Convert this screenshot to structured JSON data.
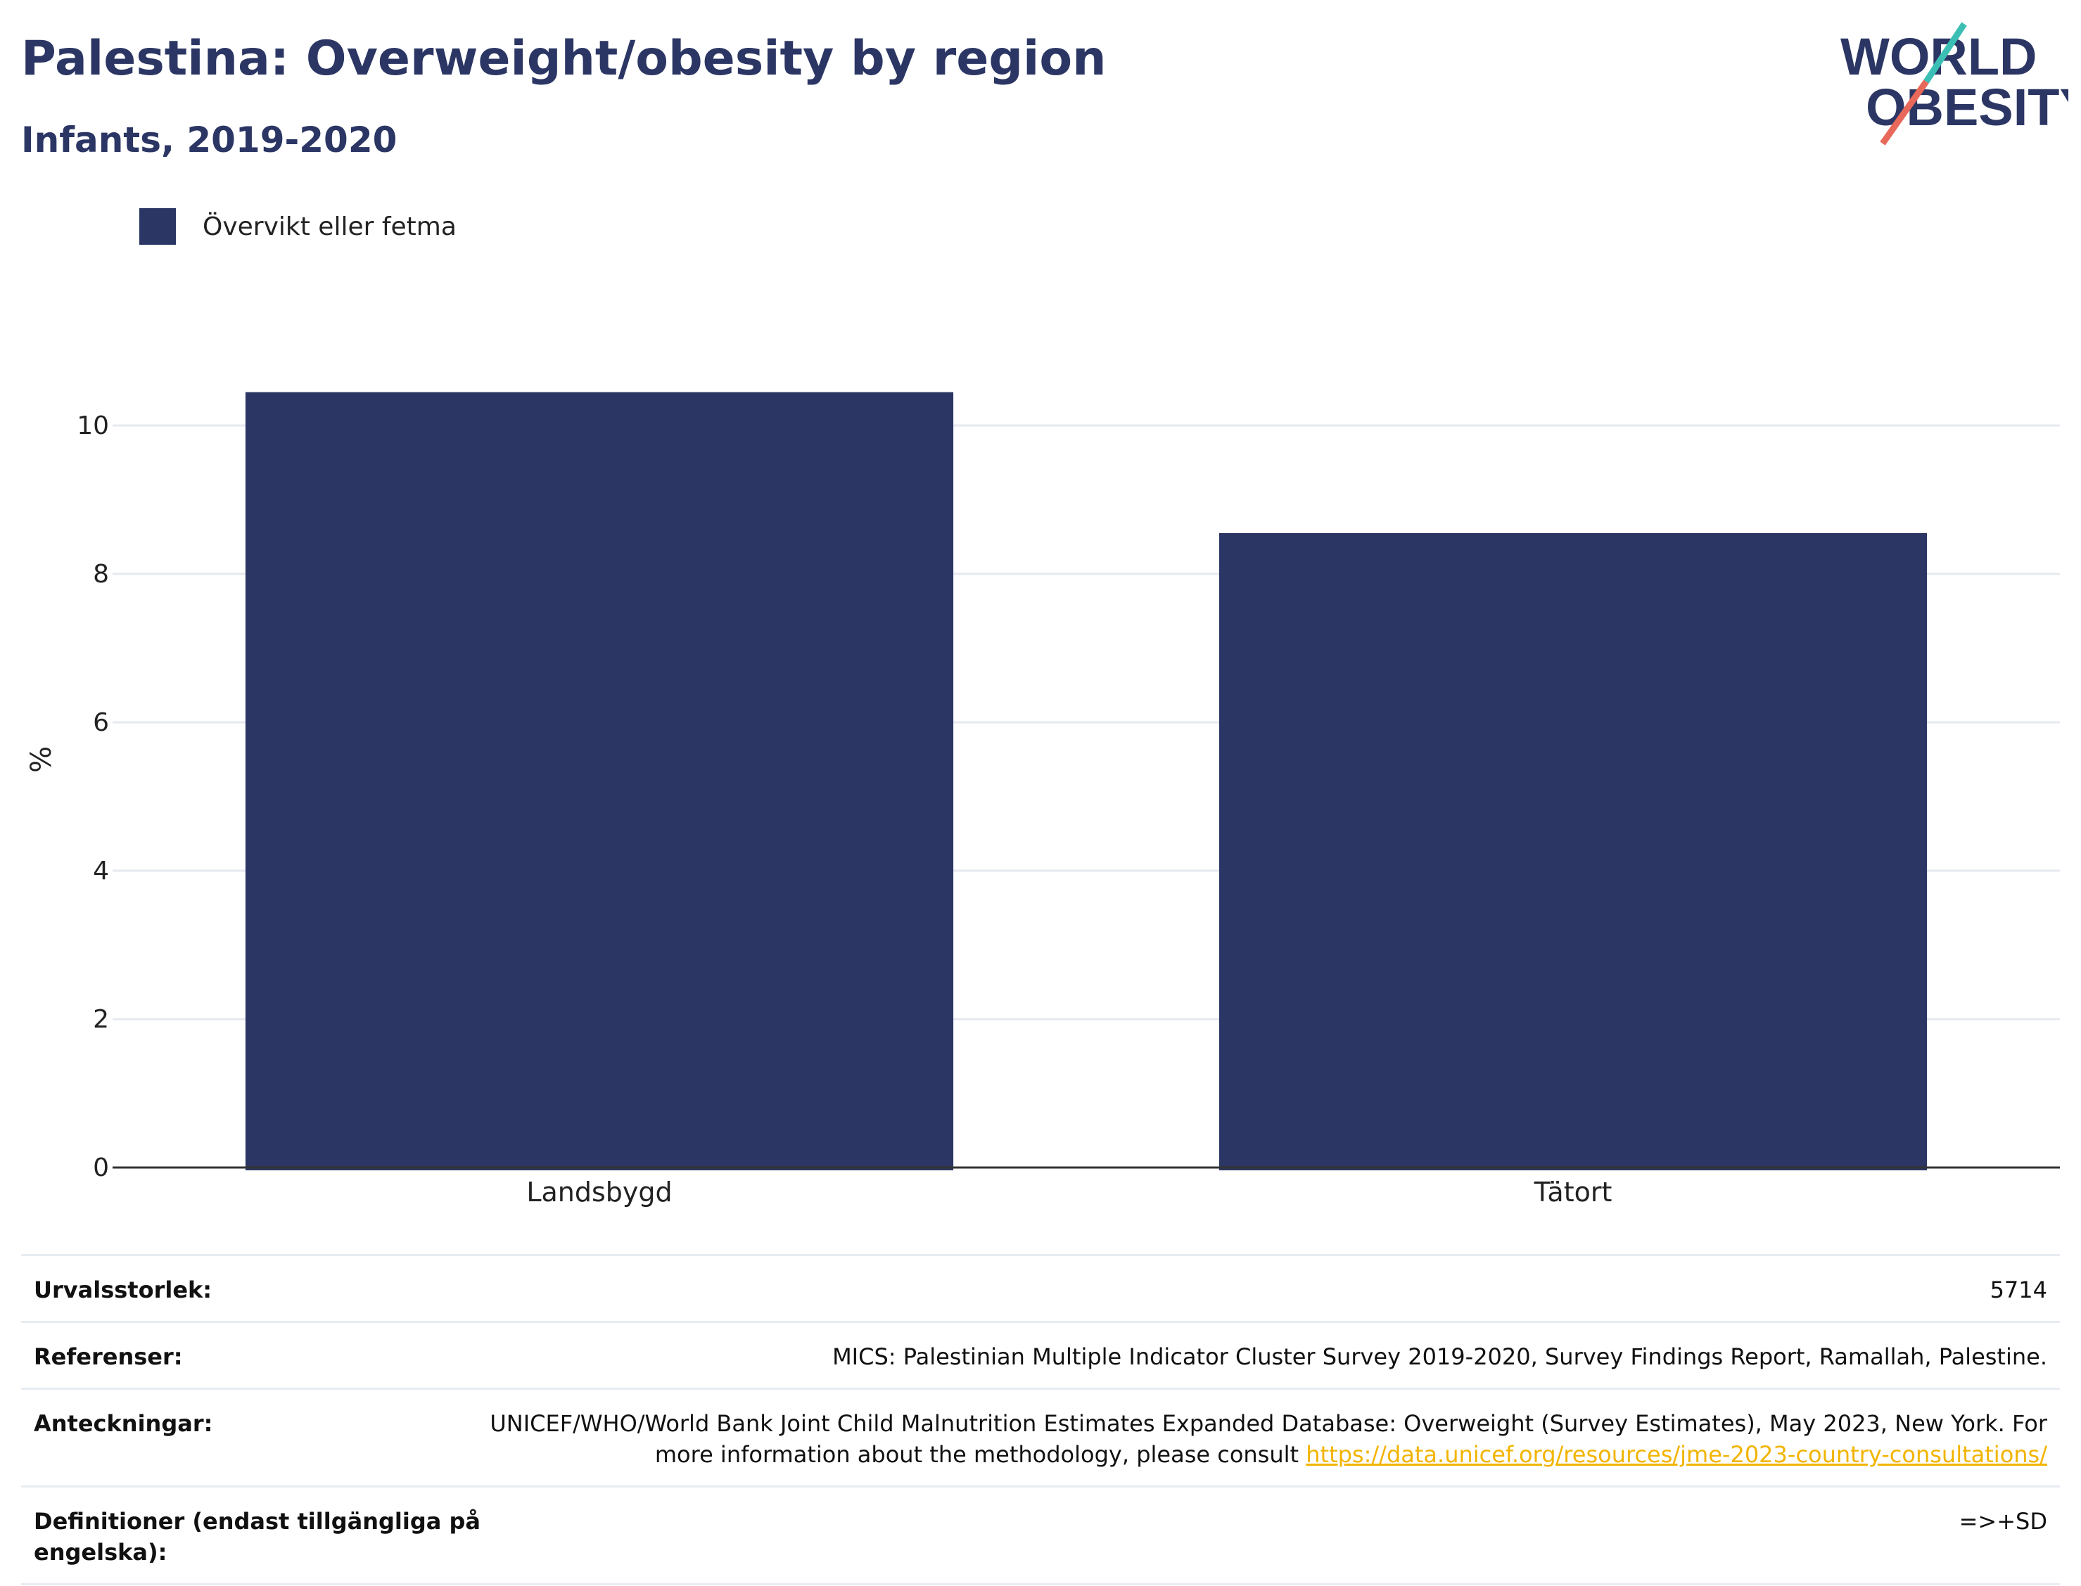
{
  "header": {
    "title": "Palestina: Overweight/obesity by region",
    "subtitle": "Infants, 2019-2020"
  },
  "logo": {
    "line1": "WORLD",
    "line2": "OBESITY"
  },
  "colors": {
    "bar": "#2b3664",
    "grid": "#e6e9ef",
    "axis": "#333333",
    "logo_navy": "#2b3664",
    "logo_teal": "#3bbfb4",
    "logo_red": "#e8685a",
    "link": "#f2b400"
  },
  "chart_data": {
    "type": "bar",
    "categories": [
      "Landsbygd",
      "Tätort"
    ],
    "series": [
      {
        "name": "Övervikt eller fetma",
        "values": [
          10.45,
          8.55
        ]
      }
    ],
    "ylabel": "%",
    "ylim": [
      0,
      11
    ],
    "yticks": [
      0,
      2,
      4,
      6,
      8,
      10
    ],
    "grid": true,
    "legend": "top-left"
  },
  "metadata": [
    {
      "key": "Urvalsstorlek:",
      "value": "5714"
    },
    {
      "key": "Referenser:",
      "value": "MICS: Palestinian Multiple Indicator Cluster Survey 2019-2020, Survey Findings Report, Ramallah, Palestine."
    },
    {
      "key": "Anteckningar:",
      "value": "UNICEF/WHO/World Bank Joint Child Malnutrition Estimates Expanded Database: Overweight (Survey Estimates), May 2023, New York. For more information about the methodology, please consult ",
      "link": "https://data.unicef.org/resources/jme-2023-country-consultations/"
    },
    {
      "key": "Definitioner (endast tillgängliga på engelska):",
      "value": "=>+SD"
    }
  ]
}
